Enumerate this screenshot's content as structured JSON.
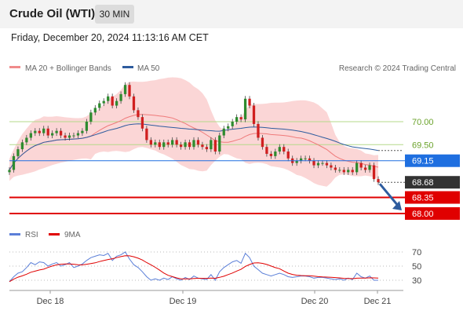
{
  "header": {
    "title": "Crude Oil (WTI)",
    "timeframe": "30 MIN"
  },
  "timestamp": "Friday, December 20, 2024 11:13:16 AM CET",
  "copyright": "Research © 2024 Trading Central",
  "colors": {
    "bollinger_band": "#f6a5a5",
    "ma20": "#ef7a7a",
    "ma50": "#2e5c9e",
    "candle_up": "#2e8b2e",
    "candle_down": "#d01f1f",
    "pivot": "#1f6fe0",
    "last_price": "#333333",
    "support": "#e00000",
    "resistance_line": "#b5d98a",
    "arrow": "#2e5c9e",
    "rsi": "#5b7fd8",
    "rsi_ma": "#e00000"
  },
  "chart_data": [
    {
      "type": "candlestick",
      "title": "Crude Oil (WTI)",
      "legend": [
        {
          "name": "MA 20 + Bollinger Bands",
          "color": "#f08b8b"
        },
        {
          "name": "MA 50",
          "color": "#2e5c9e"
        }
      ],
      "x_ticks": [
        "Dec 18",
        "Dec 19",
        "Dec 20",
        "Dec 21"
      ],
      "ylim": [
        67.8,
        70.5
      ],
      "y_ticks": [],
      "levels": [
        {
          "value": 70.0,
          "label": "70.00",
          "kind": "resistance"
        },
        {
          "value": 69.5,
          "label": "69.50",
          "kind": "resistance"
        },
        {
          "value": 69.15,
          "label": "69.15",
          "kind": "pivot"
        },
        {
          "value": 68.68,
          "label": "68.68",
          "kind": "last"
        },
        {
          "value": 68.35,
          "label": "68.35",
          "kind": "support"
        },
        {
          "value": 68.0,
          "label": "68.00",
          "kind": "support"
        }
      ],
      "close_series": [
        68.95,
        69.25,
        69.4,
        69.55,
        69.65,
        69.75,
        69.8,
        69.75,
        69.85,
        69.7,
        69.75,
        69.8,
        69.7,
        69.65,
        69.7,
        69.7,
        69.75,
        69.8,
        70.0,
        70.2,
        70.3,
        70.4,
        70.45,
        70.55,
        70.35,
        70.45,
        70.6,
        70.8,
        70.55,
        70.25,
        70.1,
        69.85,
        69.6,
        69.5,
        69.55,
        69.45,
        69.55,
        69.5,
        69.6,
        69.5,
        69.45,
        69.55,
        69.45,
        69.6,
        69.5,
        69.45,
        69.4,
        69.6,
        69.35,
        69.7,
        69.85,
        69.9,
        70.0,
        70.1,
        70.05,
        70.5,
        70.35,
        69.95,
        69.65,
        69.45,
        69.3,
        69.25,
        69.35,
        69.45,
        69.35,
        69.2,
        69.1,
        69.15,
        69.2,
        69.2,
        69.15,
        69.05,
        69.1,
        69.1,
        69.05,
        69.0,
        68.95,
        68.95,
        68.9,
        68.95,
        68.9,
        69.1,
        69.0,
        68.95,
        69.05,
        68.75,
        68.68
      ],
      "forecast_arrow": {
        "from": 68.68,
        "to": 68.0
      }
    },
    {
      "type": "line",
      "title": "RSI",
      "legend": [
        {
          "name": "RSI",
          "color": "#5b7fd8"
        },
        {
          "name": "9MA",
          "color": "#e00000"
        }
      ],
      "ylim": [
        25,
        75
      ],
      "y_ticks": [
        70,
        50,
        30
      ],
      "rsi": [
        28,
        35,
        40,
        42,
        48,
        55,
        52,
        56,
        55,
        50,
        53,
        55,
        50,
        52,
        55,
        48,
        50,
        53,
        58,
        62,
        64,
        66,
        65,
        68,
        58,
        64,
        66,
        70,
        60,
        52,
        48,
        42,
        35,
        30,
        32,
        30,
        33,
        31,
        35,
        32,
        30,
        34,
        31,
        36,
        33,
        32,
        31,
        38,
        30,
        42,
        48,
        52,
        56,
        58,
        54,
        68,
        62,
        50,
        45,
        40,
        38,
        36,
        38,
        40,
        38,
        35,
        34,
        35,
        36,
        36,
        35,
        33,
        34,
        34,
        33,
        32,
        31,
        32,
        30,
        33,
        31,
        40,
        35,
        33,
        36,
        30,
        30
      ],
      "rsi_ma_window": 9
    }
  ]
}
